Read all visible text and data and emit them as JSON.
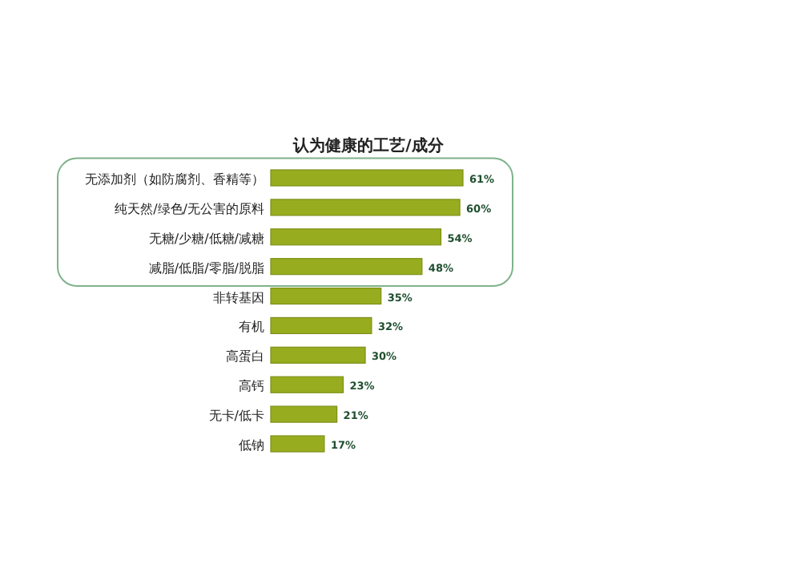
{
  "chart_data": {
    "type": "bar",
    "orientation": "horizontal",
    "title": "认为健康的工艺/成分",
    "categories": [
      "无添加剂（如防腐剂、香精等）",
      "纯天然/绿色/无公害的原料",
      "无糖/少糖/低糖/减糖",
      "减脂/低脂/零脂/脱脂",
      "非转基因",
      "有机",
      "高蛋白",
      "高钙",
      "无卡/低卡",
      "低钠"
    ],
    "values": [
      61,
      60,
      54,
      48,
      35,
      32,
      30,
      23,
      21,
      17
    ],
    "value_labels": [
      "61%",
      "60%",
      "54%",
      "48%",
      "35%",
      "32%",
      "30%",
      "23%",
      "21%",
      "17%"
    ],
    "color": "#97ad1f"
  }
}
